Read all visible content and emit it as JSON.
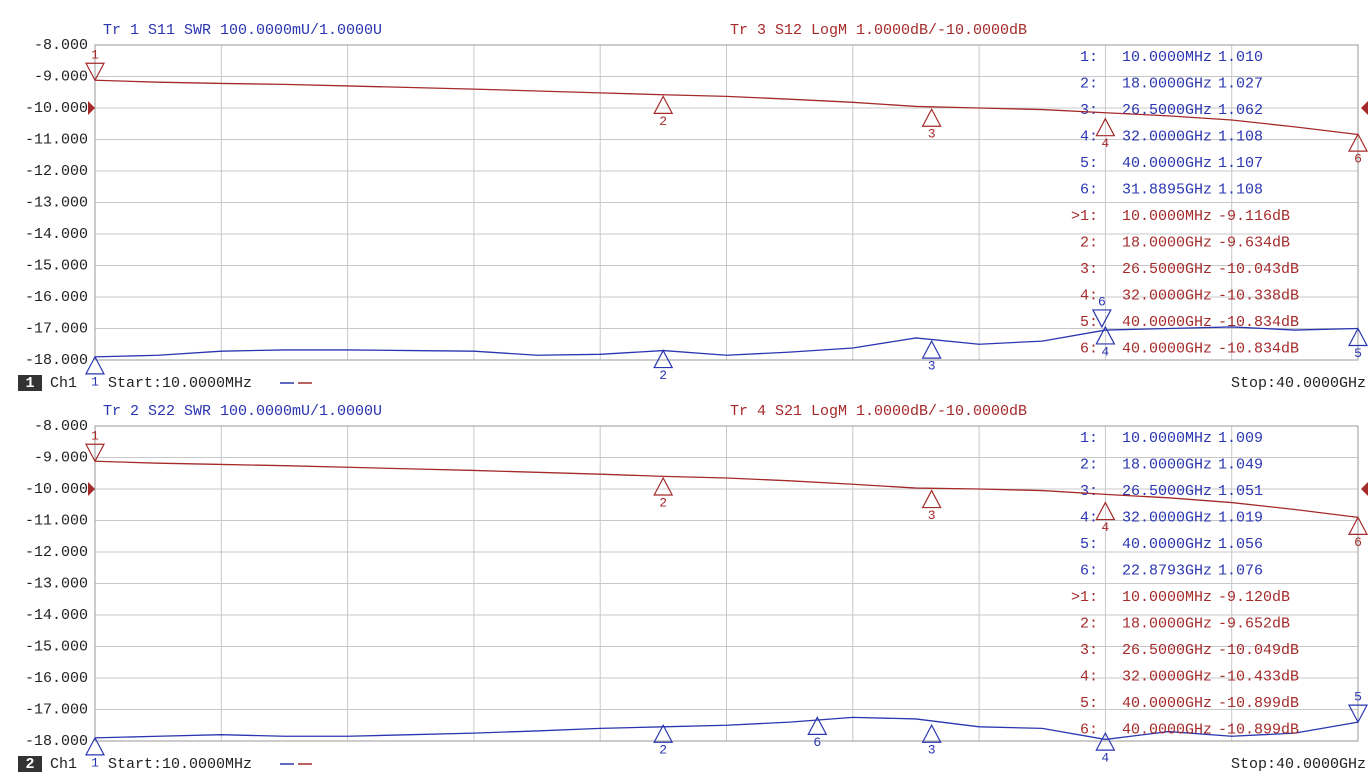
{
  "ylim": [
    -8,
    -18
  ],
  "xlim": [
    0.01,
    40
  ],
  "ref_level": -10,
  "yticks": [
    {
      "value": -8,
      "label": "-8.000"
    },
    {
      "value": -9,
      "label": "-9.000"
    },
    {
      "value": -10,
      "label": "-10.000"
    },
    {
      "value": -11,
      "label": "-11.000"
    },
    {
      "value": -12,
      "label": "-12.000"
    },
    {
      "value": -13,
      "label": "-13.000"
    },
    {
      "value": -14,
      "label": "-14.000"
    },
    {
      "value": -15,
      "label": "-15.000"
    },
    {
      "value": -16,
      "label": "-16.000"
    },
    {
      "value": -17,
      "label": "-17.000"
    },
    {
      "value": -18,
      "label": "-18.000"
    }
  ],
  "panels": [
    {
      "channel_number": "1",
      "channel": "Ch1",
      "start": "Start:10.0000MHz",
      "stop": "Stop:40.0000GHz",
      "traces": [
        {
          "header": "Tr 1  S11 SWR 100.0000mU/1.0000U",
          "color": "#2a35b0",
          "values": [
            -17.9,
            -17.85,
            -17.72,
            -17.68,
            -17.68,
            -17.7,
            -17.72,
            -17.85,
            -17.82,
            -17.7,
            -17.85,
            -17.75,
            -17.62,
            -17.3,
            -17.5,
            -17.4,
            -17.05,
            -17.0,
            -16.95,
            -17.05,
            -17.0
          ],
          "markers": [
            {
              "label": "1",
              "x": 0.01,
              "y": -17.9,
              "dir": "up"
            },
            {
              "label": "2",
              "x": 18,
              "y": -17.7,
              "dir": "up"
            },
            {
              "label": "3",
              "x": 26.5,
              "y": -17.4,
              "dir": "up"
            },
            {
              "label": "4",
              "x": 32,
              "y": -16.95,
              "dir": "up"
            },
            {
              "label": "6",
              "x": 31.8895,
              "y": -16.95,
              "dir": "down"
            },
            {
              "label": "5",
              "x": 40,
              "y": -17.0,
              "dir": "up"
            }
          ],
          "readout": [
            [
              "1:",
              "10.0000MHz",
              "1.010"
            ],
            [
              "2:",
              "18.0000GHz",
              "1.027"
            ],
            [
              "3:",
              "26.5000GHz",
              "1.062"
            ],
            [
              "4:",
              "32.0000GHz",
              "1.108"
            ],
            [
              "5:",
              "40.0000GHz",
              "1.107"
            ],
            [
              "6:",
              "31.8895GHz",
              "1.108"
            ]
          ]
        },
        {
          "header": "Tr 3  S12 LogM 1.0000dB/-10.0000dB",
          "color": "#a52a2a",
          "values": [
            -9.12,
            -9.18,
            -9.22,
            -9.25,
            -9.3,
            -9.35,
            -9.4,
            -9.46,
            -9.52,
            -9.58,
            -9.63,
            -9.72,
            -9.82,
            -9.95,
            -10.0,
            -10.05,
            -10.15,
            -10.25,
            -10.38,
            -10.6,
            -10.84
          ],
          "markers": [
            {
              "label": "1",
              "x": 0.01,
              "y": -9.12,
              "dir": "down"
            },
            {
              "label": "2",
              "x": 18,
              "y": -9.63,
              "dir": "up"
            },
            {
              "label": "3",
              "x": 26.5,
              "y": -10.04,
              "dir": "up"
            },
            {
              "label": "4",
              "x": 32,
              "y": -10.34,
              "dir": "up"
            },
            {
              "label": "6",
              "x": 40,
              "y": -10.83,
              "dir": "up"
            }
          ],
          "readout": [
            [
              ">1:",
              "10.0000MHz",
              "-9.116dB"
            ],
            [
              "2:",
              "18.0000GHz",
              "-9.634dB"
            ],
            [
              "3:",
              "26.5000GHz",
              "-10.043dB"
            ],
            [
              "4:",
              "32.0000GHz",
              "-10.338dB"
            ],
            [
              "5:",
              "40.0000GHz",
              "-10.834dB"
            ],
            [
              "6:",
              "40.0000GHz",
              "-10.834dB"
            ]
          ]
        }
      ]
    },
    {
      "channel_number": "2",
      "channel": "Ch1",
      "start": "Start:10.0000MHz",
      "stop": "Stop:40.0000GHz",
      "traces": [
        {
          "header": "Tr 2  S22 SWR 100.0000mU/1.0000U",
          "color": "#2a35b0",
          "values": [
            -17.9,
            -17.85,
            -17.8,
            -17.85,
            -17.85,
            -17.8,
            -17.75,
            -17.68,
            -17.6,
            -17.55,
            -17.5,
            -17.4,
            -17.25,
            -17.3,
            -17.55,
            -17.6,
            -17.95,
            -17.7,
            -17.85,
            -17.75,
            -17.4
          ],
          "markers": [
            {
              "label": "1",
              "x": 0.01,
              "y": -17.9,
              "dir": "up"
            },
            {
              "label": "2",
              "x": 18,
              "y": -17.5,
              "dir": "up"
            },
            {
              "label": "6",
              "x": 22.8793,
              "y": -17.25,
              "dir": "up"
            },
            {
              "label": "3",
              "x": 26.5,
              "y": -17.5,
              "dir": "up"
            },
            {
              "label": "4",
              "x": 32,
              "y": -17.75,
              "dir": "up"
            },
            {
              "label": "5",
              "x": 40,
              "y": -17.4,
              "dir": "down"
            }
          ],
          "readout": [
            [
              "1:",
              "10.0000MHz",
              "1.009"
            ],
            [
              "2:",
              "18.0000GHz",
              "1.049"
            ],
            [
              "3:",
              "26.5000GHz",
              "1.051"
            ],
            [
              "4:",
              "32.0000GHz",
              "1.019"
            ],
            [
              "5:",
              "40.0000GHz",
              "1.056"
            ],
            [
              "6:",
              "22.8793GHz",
              "1.076"
            ]
          ]
        },
        {
          "header": "Tr 4  S21 LogM 1.0000dB/-10.0000dB",
          "color": "#a52a2a",
          "values": [
            -9.12,
            -9.18,
            -9.22,
            -9.26,
            -9.31,
            -9.36,
            -9.41,
            -9.47,
            -9.53,
            -9.6,
            -9.65,
            -9.74,
            -9.85,
            -9.97,
            -10.0,
            -10.05,
            -10.17,
            -10.28,
            -10.43,
            -10.65,
            -10.9
          ],
          "markers": [
            {
              "label": "1",
              "x": 0.01,
              "y": -9.12,
              "dir": "down"
            },
            {
              "label": "2",
              "x": 18,
              "y": -9.65,
              "dir": "up"
            },
            {
              "label": "3",
              "x": 26.5,
              "y": -10.05,
              "dir": "up"
            },
            {
              "label": "4",
              "x": 32,
              "y": -10.43,
              "dir": "up"
            },
            {
              "label": "6",
              "x": 40,
              "y": -10.9,
              "dir": "up"
            }
          ],
          "readout": [
            [
              ">1:",
              "10.0000MHz",
              "-9.120dB"
            ],
            [
              "2:",
              "18.0000GHz",
              "-9.652dB"
            ],
            [
              "3:",
              "26.5000GHz",
              "-10.049dB"
            ],
            [
              "4:",
              "32.0000GHz",
              "-10.433dB"
            ],
            [
              "5:",
              "40.0000GHz",
              "-10.899dB"
            ],
            [
              "6:",
              "40.0000GHz",
              "-10.899dB"
            ]
          ]
        }
      ]
    }
  ]
}
